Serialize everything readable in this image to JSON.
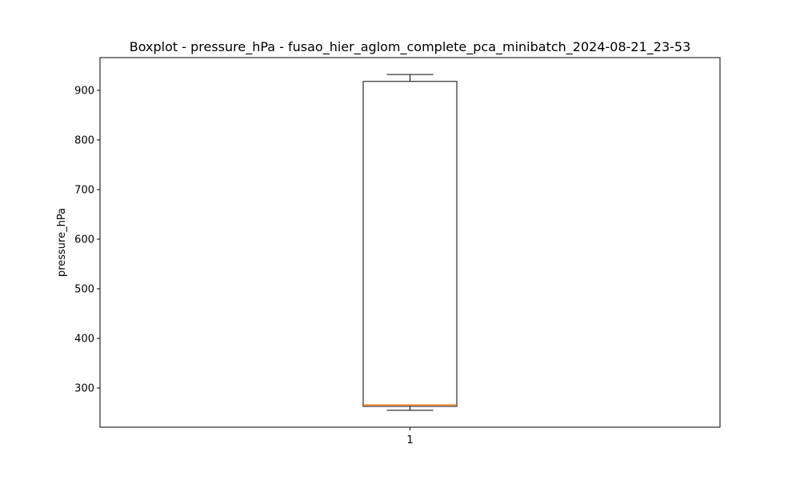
{
  "chart_data": {
    "type": "box",
    "title": "Boxplot - pressure_hPa - fusao_hier_aglom_complete_pca_minibatch_2024-08-21_23-53",
    "xlabel": "",
    "ylabel": "pressure_hPa",
    "categories": [
      "1"
    ],
    "ylim": [
      221,
      966
    ],
    "yticks": [
      300,
      400,
      500,
      600,
      700,
      800,
      900
    ],
    "grid": false,
    "boxes": [
      {
        "category": "1",
        "whisker_low": 255,
        "q1": 263,
        "median": 266,
        "q3": 918,
        "whisker_high": 932
      }
    ],
    "colors": {
      "box": "#000000",
      "median": "#ff7f0e",
      "axes": "#000000"
    }
  }
}
